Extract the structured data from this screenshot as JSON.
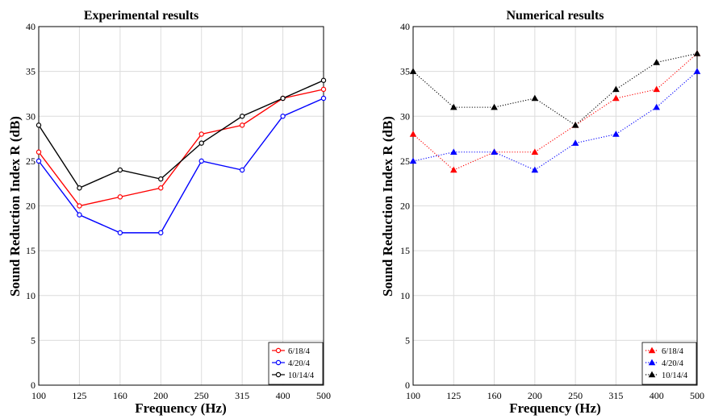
{
  "chart_data": [
    {
      "type": "line",
      "title": "Experimental results",
      "xlabel": "Frequency (Hz)",
      "ylabel": "Sound Reduction Index R (dB)",
      "categories": [
        "100",
        "125",
        "160",
        "200",
        "250",
        "315",
        "400",
        "500"
      ],
      "yticks": [
        "0",
        "5",
        "10",
        "15",
        "20",
        "25",
        "30",
        "35",
        "40"
      ],
      "ylim": [
        0,
        40
      ],
      "grid": true,
      "legend_position": "bottom-right",
      "marker": "circle",
      "line_style": "solid",
      "series": [
        {
          "name": "6/18/4",
          "color": "#ff0000",
          "values": [
            26,
            20,
            21,
            22,
            28,
            29,
            32,
            33
          ]
        },
        {
          "name": "4/20/4",
          "color": "#0000ff",
          "values": [
            25,
            19,
            17,
            17,
            25,
            24,
            30,
            32
          ]
        },
        {
          "name": "10/14/4",
          "color": "#000000",
          "values": [
            29,
            22,
            24,
            23,
            27,
            30,
            32,
            34
          ]
        }
      ]
    },
    {
      "type": "line",
      "title": "Numerical results",
      "xlabel": "Frequency (Hz)",
      "ylabel": "Sound Reduction Index R (dB)",
      "categories": [
        "100",
        "125",
        "160",
        "200",
        "250",
        "315",
        "400",
        "500"
      ],
      "yticks": [
        "0",
        "5",
        "10",
        "15",
        "20",
        "25",
        "30",
        "35",
        "40"
      ],
      "ylim": [
        0,
        40
      ],
      "grid": true,
      "legend_position": "bottom-right",
      "marker": "triangle",
      "line_style": "dotted",
      "series": [
        {
          "name": "6/18/4",
          "color": "#ff0000",
          "values": [
            28,
            24,
            26,
            26,
            29,
            32,
            33,
            37
          ]
        },
        {
          "name": "4/20/4",
          "color": "#0000ff",
          "values": [
            25,
            26,
            26,
            24,
            27,
            28,
            31,
            35
          ]
        },
        {
          "name": "10/14/4",
          "color": "#000000",
          "values": [
            35,
            31,
            31,
            32,
            29,
            33,
            36,
            37
          ]
        }
      ]
    }
  ]
}
